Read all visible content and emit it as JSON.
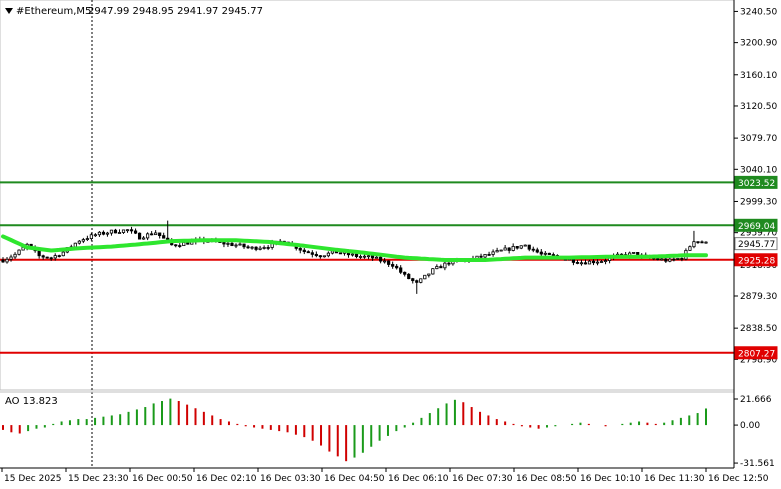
{
  "header": {
    "symbol": "#Ethereum,M5",
    "ohlc": "2947.99 2948.95 2941.97 2945.77"
  },
  "colors": {
    "candle": "#000000",
    "ma": "#2ee62e",
    "line_green": "#1f8a1f",
    "line_red": "#e00000",
    "ao_up": "#1a9a1a",
    "ao_down": "#d00000",
    "bg": "#ffffff"
  },
  "chart_data": [
    {
      "type": "candlestick",
      "title": "#Ethereum,M5",
      "ylim": [
        2760,
        3255
      ],
      "y_ticks": [
        "3240.50",
        "3200.90",
        "3160.10",
        "3120.50",
        "3079.70",
        "3040.10",
        "2999.30",
        "2959.70",
        "2918.90",
        "2879.30",
        "2838.50",
        "2798.90"
      ],
      "x_ticks": [
        "15 Dec 2025",
        "15 Dec 23:30",
        "16 Dec 00:50",
        "16 Dec 02:10",
        "16 Dec 03:30",
        "16 Dec 04:50",
        "16 Dec 06:10",
        "16 Dec 07:30",
        "16 Dec 08:50",
        "16 Dec 10:10",
        "16 Dec 11:30",
        "16 Dec 12:50"
      ],
      "close_path": [
        [
          0,
          2925
        ],
        [
          3,
          2932
        ],
        [
          6,
          2944
        ],
        [
          9,
          2930
        ],
        [
          12,
          2928
        ],
        [
          15,
          2935
        ],
        [
          19,
          2950
        ],
        [
          23,
          2957
        ],
        [
          27,
          2961
        ],
        [
          31,
          2963
        ],
        [
          34,
          2954
        ],
        [
          38,
          2960
        ],
        [
          42,
          2944
        ],
        [
          46,
          2947
        ],
        [
          50,
          2950
        ],
        [
          54,
          2947
        ],
        [
          58,
          2944
        ],
        [
          62,
          2940
        ],
        [
          66,
          2943
        ],
        [
          70,
          2950
        ],
        [
          75,
          2936
        ],
        [
          79,
          2931
        ],
        [
          83,
          2935
        ],
        [
          88,
          2930
        ],
        [
          92,
          2928
        ],
        [
          97,
          2919
        ],
        [
          100,
          2905
        ],
        [
          103,
          2895
        ],
        [
          107,
          2912
        ],
        [
          111,
          2922
        ],
        [
          116,
          2925
        ],
        [
          121,
          2932
        ],
        [
          125,
          2938
        ],
        [
          130,
          2944
        ],
        [
          134,
          2932
        ],
        [
          139,
          2928
        ],
        [
          144,
          2922
        ],
        [
          149,
          2924
        ],
        [
          153,
          2930
        ],
        [
          157,
          2933
        ],
        [
          160,
          2928
        ],
        [
          163,
          2926
        ],
        [
          166,
          2924
        ],
        [
          169,
          2928
        ],
        [
          172,
          2950
        ],
        [
          175,
          2946
        ]
      ],
      "ma_path": [
        [
          0,
          2955
        ],
        [
          6,
          2941
        ],
        [
          12,
          2937
        ],
        [
          19,
          2940
        ],
        [
          27,
          2942
        ],
        [
          34,
          2945
        ],
        [
          42,
          2949
        ],
        [
          50,
          2950
        ],
        [
          58,
          2950
        ],
        [
          66,
          2948
        ],
        [
          75,
          2943
        ],
        [
          83,
          2938
        ],
        [
          92,
          2933
        ],
        [
          100,
          2928
        ],
        [
          110,
          2925
        ],
        [
          120,
          2925
        ],
        [
          130,
          2928
        ],
        [
          140,
          2928
        ],
        [
          150,
          2929
        ],
        [
          160,
          2929
        ],
        [
          170,
          2931
        ],
        [
          175,
          2931
        ]
      ],
      "levels": [
        {
          "label": "3023.52",
          "value": 3023.52,
          "color": "green"
        },
        {
          "label": "2969.04",
          "value": 2969.04,
          "color": "green"
        },
        {
          "label": "2945.77",
          "value": 2945.77,
          "color": "gray"
        },
        {
          "label": "2925.28",
          "value": 2925.28,
          "color": "red"
        },
        {
          "label": "2807.27",
          "value": 2807.27,
          "color": "red"
        }
      ]
    },
    {
      "type": "bar",
      "title": "AO 13.823",
      "ylim": [
        -34,
        25
      ],
      "y_ticks": [
        "21.666",
        "0.00",
        "-31.561"
      ],
      "values": [
        -4,
        -6,
        -7,
        -5,
        -3,
        -2,
        1,
        3,
        4,
        5,
        5,
        6,
        7,
        8,
        9,
        11,
        13,
        15,
        18,
        20,
        22,
        20,
        17,
        14,
        11,
        8,
        5,
        3,
        1,
        -1,
        -2,
        -3,
        -4,
        -5,
        -6,
        -8,
        -10,
        -13,
        -17,
        -22,
        -26,
        -30,
        -27,
        -23,
        -18,
        -13,
        -9,
        -5,
        -2,
        2,
        6,
        10,
        14,
        18,
        21,
        19,
        15,
        11,
        8,
        5,
        3,
        1,
        -1,
        -2,
        -3,
        -2,
        -1,
        0,
        1,
        2,
        1,
        0,
        -1,
        0,
        1,
        2,
        3,
        2,
        1,
        2,
        4,
        6,
        8,
        10,
        13.8
      ]
    }
  ]
}
